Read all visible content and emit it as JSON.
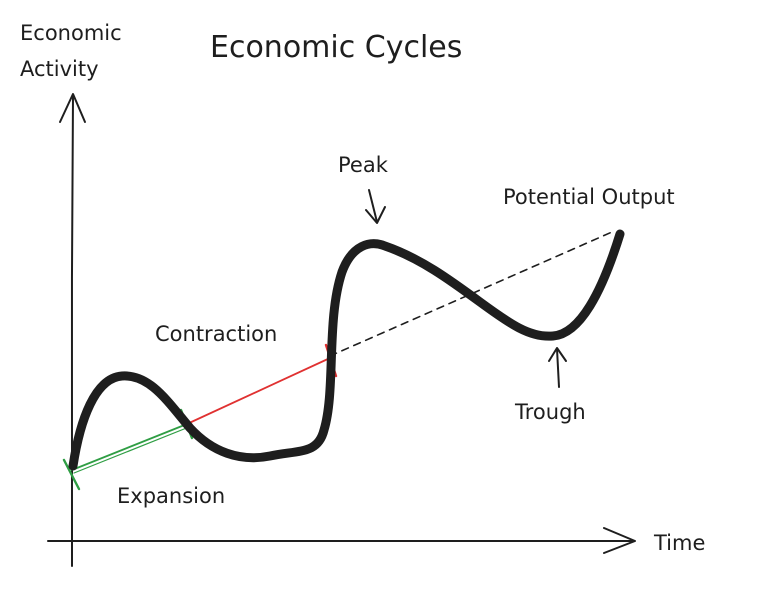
{
  "title": "Economic Cycles",
  "y_axis": {
    "label_line1": "Economic",
    "label_line2": "Activity"
  },
  "x_axis": {
    "label": "Time"
  },
  "annotations": {
    "peak": "Peak",
    "trough": "Trough",
    "potential_output": "Potential Output",
    "contraction": "Contraction",
    "expansion": "Expansion"
  },
  "colors": {
    "ink": "#1e1e1e",
    "contraction": "#e03131",
    "expansion": "#2f9e44"
  }
}
